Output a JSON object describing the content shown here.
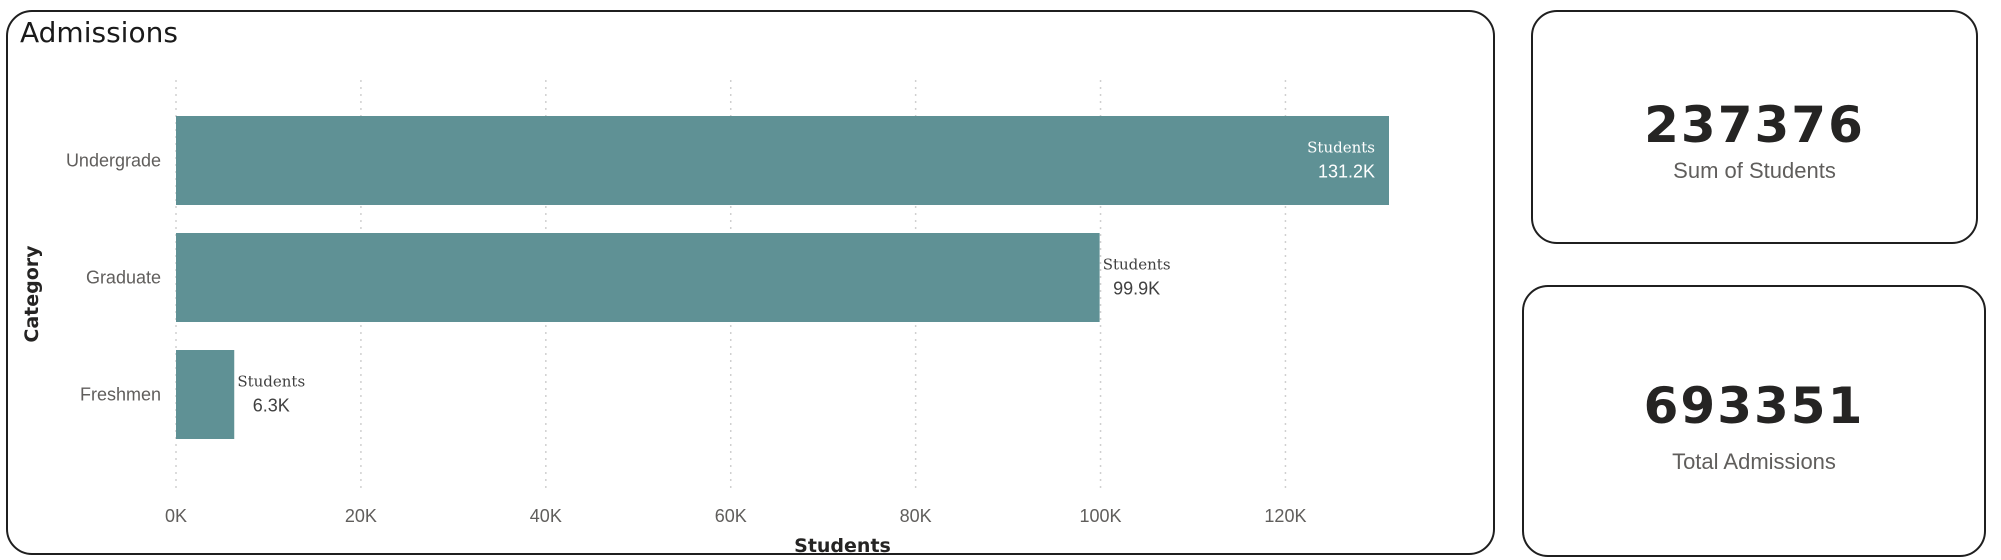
{
  "chart_panel": {
    "title": "Admissions"
  },
  "chart_data": {
    "type": "bar",
    "orientation": "horizontal",
    "title": "Admissions",
    "xlabel": "Students",
    "ylabel": "Category",
    "categories": [
      "Undergrade",
      "Graduate",
      "Freshmen"
    ],
    "series": [
      {
        "name": "Students",
        "values": [
          131200,
          99900,
          6300
        ]
      }
    ],
    "data_labels": [
      "131.2K",
      "99.9K",
      "6.3K"
    ],
    "xlim": [
      0,
      131200
    ],
    "x_ticks": [
      0,
      20000,
      40000,
      60000,
      80000,
      100000,
      120000
    ],
    "x_tick_labels": [
      "0K",
      "20K",
      "40K",
      "60K",
      "80K",
      "100K",
      "120K"
    ],
    "grid": true,
    "bar_color": "#5f9195"
  },
  "cards": [
    {
      "value": "237376",
      "label": "Sum of Students"
    },
    {
      "value": "693351",
      "label": "Total Admissions"
    }
  ]
}
